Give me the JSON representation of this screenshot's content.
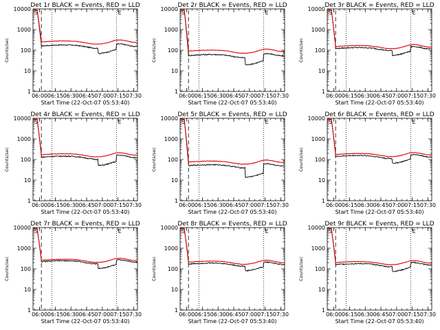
{
  "chart_data": {
    "type": "line",
    "shared": {
      "xlabel": "Start Time (22-Oct-07 05:53:40)",
      "ylabel": "Counts/sec",
      "x_tick_labels": [
        "06:00",
        "06:15",
        "06:30",
        "06:45",
        "07:00",
        "07:15",
        "07:30"
      ],
      "x_tick_minutes": [
        6.33,
        21.33,
        36.33,
        51.33,
        66.33,
        81.33,
        96.33
      ],
      "xlim_minutes_from_start": [
        0,
        100
      ],
      "y_scale": "log",
      "ylim": [
        1,
        10000
      ],
      "y_tick_labels": [
        "1",
        "10",
        "100",
        "1000",
        "10000"
      ],
      "y_tick_values": [
        1,
        10,
        100,
        1000,
        10000
      ],
      "dashed_vline_minute": 8,
      "dotted_vline_minutes": [
        18,
        80
      ],
      "start_marker": "S",
      "end_marker": "E",
      "series_colors": {
        "events": "#000000",
        "lld": "#e00000"
      }
    },
    "panels": [
      {
        "title": "Det 1r BLACK = Events, RED = LLD",
        "events_level": 160,
        "lld_level": 250,
        "peak": 9000,
        "drop": 0.55
      },
      {
        "title": "Det 2r BLACK = Events, RED = LLD",
        "events_level": 55,
        "lld_level": 90,
        "peak": 9000,
        "drop": 0.45
      },
      {
        "title": "Det 3r BLACK = Events, RED = LLD",
        "events_level": 120,
        "lld_level": 150,
        "peak": 9000,
        "drop": 0.6
      },
      {
        "title": "Det 4r BLACK = Events, RED = LLD",
        "events_level": 130,
        "lld_level": 170,
        "peak": 9000,
        "drop": 0.5
      },
      {
        "title": "Det 5r BLACK = Events, RED = LLD",
        "events_level": 50,
        "lld_level": 75,
        "peak": 9000,
        "drop": 0.35
      },
      {
        "title": "Det 6r BLACK = Events, RED = LLD",
        "events_level": 140,
        "lld_level": 175,
        "peak": 9000,
        "drop": 0.6
      },
      {
        "title": "Det 7r BLACK = Events, RED = LLD",
        "events_level": 220,
        "lld_level": 260,
        "peak": 9000,
        "drop": 0.6
      },
      {
        "title": "Det 8r BLACK = Events, RED = LLD",
        "events_level": 170,
        "lld_level": 210,
        "peak": 9000,
        "drop": 0.6
      },
      {
        "title": "Det 9r BLACK = Events, RED = LLD",
        "events_level": 160,
        "lld_level": 200,
        "peak": 9000,
        "drop": 0.6
      }
    ]
  }
}
